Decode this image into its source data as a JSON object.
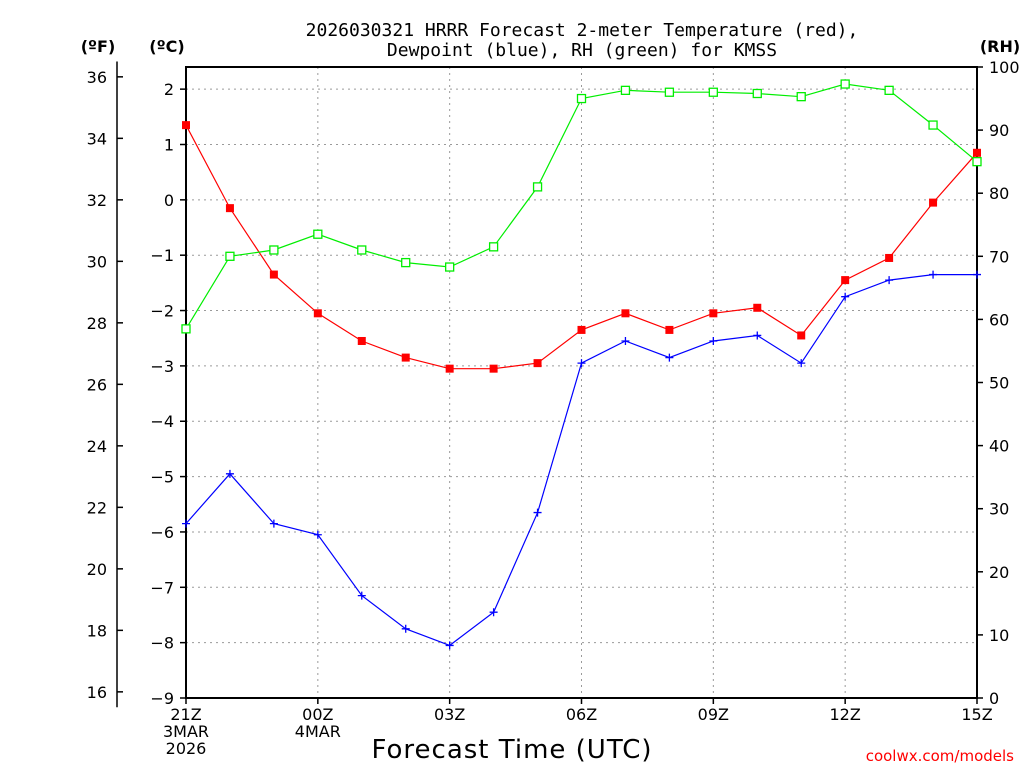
{
  "chart_data": {
    "type": "line",
    "title_line1": "2026030321 HRRR Forecast 2-meter Temperature (red),",
    "title_line2": "Dewpoint (blue), RH (green) for KMSS",
    "xlabel": "Forecast Time (UTC)",
    "credit": "coolwx.com/models",
    "left_axis_f_label": "(ºF)",
    "left_axis_c_label": "(ºC)",
    "right_axis_label": "(RH)",
    "hours": [
      0,
      1,
      2,
      3,
      4,
      5,
      6,
      7,
      8,
      9,
      10,
      11,
      12,
      13,
      14,
      15,
      16,
      17,
      18
    ],
    "x_ticks": [
      {
        "hour": 0,
        "lines": [
          "21Z",
          "3MAR",
          "2026"
        ]
      },
      {
        "hour": 3,
        "lines": [
          "00Z",
          "4MAR"
        ]
      },
      {
        "hour": 6,
        "lines": [
          "03Z"
        ]
      },
      {
        "hour": 9,
        "lines": [
          "06Z"
        ]
      },
      {
        "hour": 12,
        "lines": [
          "09Z"
        ]
      },
      {
        "hour": 15,
        "lines": [
          "12Z"
        ]
      },
      {
        "hour": 18,
        "lines": [
          "15Z"
        ]
      }
    ],
    "celsius_range": [
      -9,
      2.4
    ],
    "celsius_ticks": [
      2,
      1,
      0,
      -1,
      -2,
      -3,
      -4,
      -5,
      -6,
      -7,
      -8,
      -9
    ],
    "celsius_tick_labels": [
      "2",
      "1",
      "0",
      "−1",
      "−2",
      "−3",
      "−4",
      "−5",
      "−6",
      "−7",
      "−8",
      "−9"
    ],
    "fahrenheit_ticks": [
      36,
      34,
      32,
      30,
      28,
      26,
      24,
      22,
      20,
      18,
      16
    ],
    "rh_range": [
      0,
      100
    ],
    "rh_ticks": [
      100,
      90,
      80,
      70,
      60,
      50,
      40,
      30,
      20,
      10,
      0
    ],
    "series": [
      {
        "name": "2-meter Temperature",
        "unit": "C",
        "color": "#ff0000",
        "marker": "filled-square",
        "values": [
          1.35,
          -0.15,
          -1.35,
          -2.05,
          -2.55,
          -2.85,
          -3.05,
          -3.05,
          -2.95,
          -2.35,
          -2.05,
          -2.35,
          -2.05,
          -1.95,
          -2.45,
          -1.45,
          -1.05,
          -0.05,
          0.85
        ]
      },
      {
        "name": "Dewpoint",
        "unit": "C",
        "color": "#0000ff",
        "marker": "plus",
        "values": [
          -5.85,
          -4.95,
          -5.85,
          -6.05,
          -7.15,
          -7.75,
          -8.05,
          -7.45,
          -5.65,
          -2.95,
          -2.55,
          -2.85,
          -2.55,
          -2.45,
          -2.95,
          -1.75,
          -1.45,
          -1.35,
          -1.35
        ]
      },
      {
        "name": "RH",
        "unit": "%",
        "color": "#00ee00",
        "marker": "open-square",
        "values": [
          58.5,
          70,
          71,
          73.5,
          71,
          69,
          68.3,
          71.5,
          81,
          95,
          96.3,
          96,
          96,
          95.8,
          95.3,
          97.3,
          96.3,
          90.8,
          85
        ]
      }
    ]
  }
}
